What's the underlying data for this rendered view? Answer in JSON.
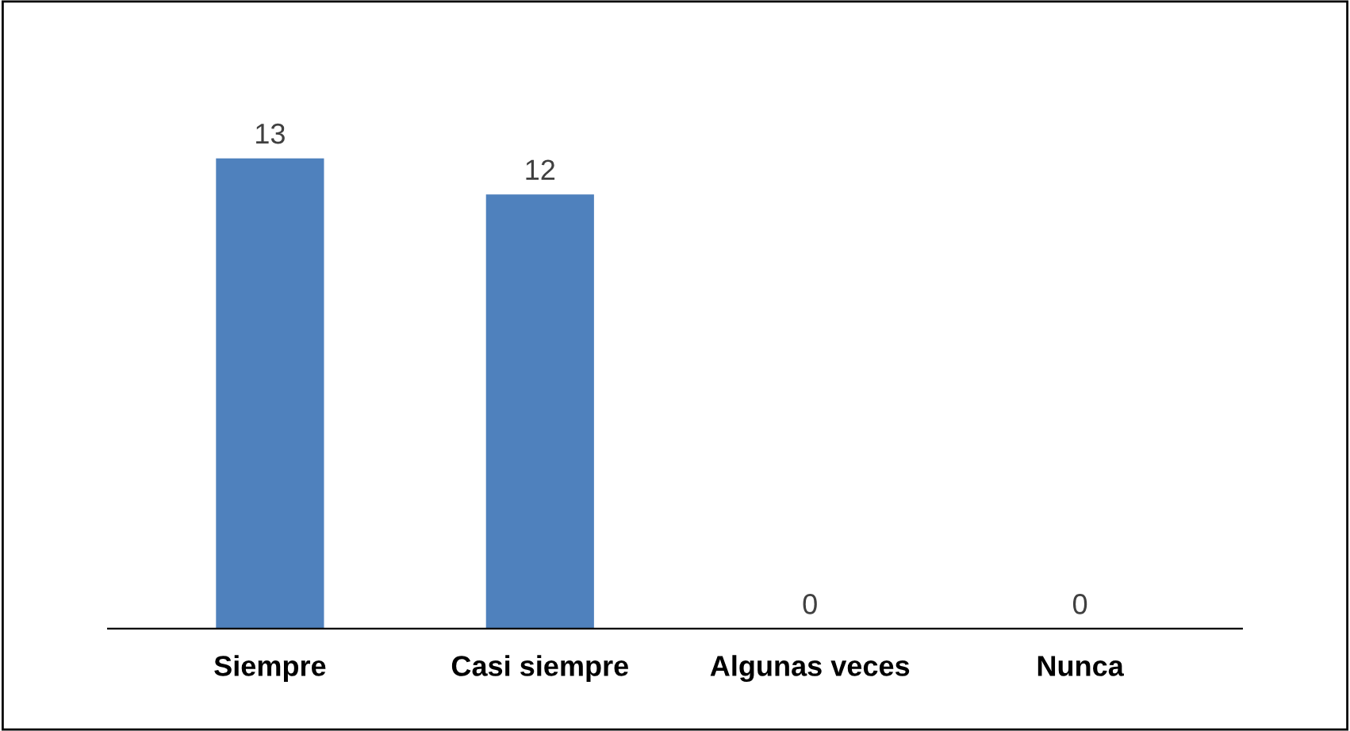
{
  "chart_data": {
    "type": "bar",
    "categories": [
      "Siempre",
      "Casi siempre",
      "Algunas veces",
      "Nunca"
    ],
    "values": [
      13,
      12,
      0,
      0
    ],
    "color": "#4f81bd",
    "data_labels": true,
    "grid": false,
    "legend": false
  }
}
